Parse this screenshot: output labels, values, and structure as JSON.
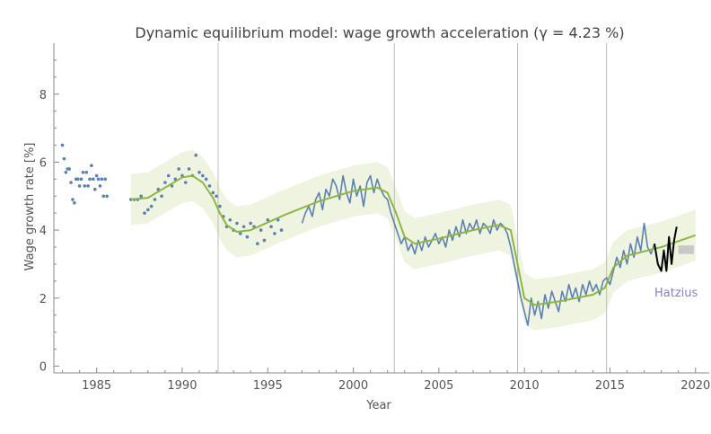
{
  "chart_data": {
    "type": "line",
    "title": "Dynamic equilibrium model: wage growth acceleration (γ = 4.23 %)",
    "xlabel": "Year",
    "ylabel": "Wage growth rate [%]",
    "xlim": [
      1982.5,
      2020.8
    ],
    "ylim": [
      -0.2,
      9.5
    ],
    "x_ticks": [
      1985,
      1990,
      1995,
      2000,
      2005,
      2010,
      2015,
      2020
    ],
    "y_ticks": [
      0,
      2,
      4,
      6,
      8
    ],
    "shock_years": [
      1992.1,
      2002.4,
      2009.6,
      2014.8
    ],
    "annotation": "Hatzius",
    "colors": {
      "data": "#5b80b2",
      "model": "#8fb542",
      "band": "#eef4df",
      "forecast": "#000000",
      "hatzius_box": "#c8c8c8",
      "shock_line": "#bbbbbb",
      "annotation": "#8b7fc0"
    },
    "early_dots": [
      [
        1983.0,
        6.5
      ],
      [
        1983.1,
        6.1
      ],
      [
        1983.2,
        5.7
      ],
      [
        1983.3,
        5.8
      ],
      [
        1983.4,
        5.8
      ],
      [
        1983.5,
        5.4
      ],
      [
        1983.6,
        4.9
      ],
      [
        1983.7,
        4.8
      ],
      [
        1983.8,
        5.5
      ],
      [
        1983.9,
        5.5
      ],
      [
        1984.0,
        5.3
      ],
      [
        1984.1,
        5.5
      ],
      [
        1984.2,
        5.7
      ],
      [
        1984.3,
        5.3
      ],
      [
        1984.4,
        5.7
      ],
      [
        1984.5,
        5.3
      ],
      [
        1984.6,
        5.5
      ],
      [
        1984.7,
        5.9
      ],
      [
        1984.8,
        5.5
      ],
      [
        1984.9,
        5.2
      ],
      [
        1985.0,
        5.6
      ],
      [
        1985.1,
        5.5
      ],
      [
        1985.2,
        5.3
      ],
      [
        1985.3,
        5.5
      ],
      [
        1985.4,
        5.0
      ],
      [
        1985.5,
        5.5
      ],
      [
        1985.6,
        5.0
      ]
    ],
    "series": [
      {
        "name": "Wage growth (data)",
        "segments": [
          [
            [
              1987.0,
              4.9
            ],
            [
              1987.2,
              4.9
            ],
            [
              1987.4,
              4.9
            ],
            [
              1987.6,
              5.0
            ],
            [
              1987.8,
              4.5
            ],
            [
              1988.0,
              4.6
            ],
            [
              1988.2,
              4.7
            ],
            [
              1988.4,
              4.9
            ],
            [
              1988.6,
              5.2
            ],
            [
              1988.8,
              5.0
            ],
            [
              1989.0,
              5.4
            ],
            [
              1989.2,
              5.6
            ],
            [
              1989.4,
              5.3
            ],
            [
              1989.6,
              5.5
            ],
            [
              1989.8,
              5.8
            ],
            [
              1990.0,
              5.6
            ],
            [
              1990.2,
              5.4
            ],
            [
              1990.4,
              5.8
            ],
            [
              1990.6,
              5.6
            ],
            [
              1990.8,
              6.2
            ],
            [
              1991.0,
              5.7
            ],
            [
              1991.2,
              5.6
            ],
            [
              1991.4,
              5.5
            ],
            [
              1991.6,
              5.3
            ],
            [
              1991.8,
              5.1
            ],
            [
              1992.0,
              5.0
            ],
            [
              1992.2,
              4.7
            ],
            [
              1992.4,
              4.4
            ],
            [
              1992.6,
              4.1
            ],
            [
              1992.8,
              4.3
            ],
            [
              1993.0,
              4.0
            ],
            [
              1993.2,
              4.2
            ],
            [
              1993.4,
              3.9
            ],
            [
              1993.6,
              4.1
            ],
            [
              1993.8,
              3.8
            ],
            [
              1994.0,
              4.2
            ],
            [
              1994.2,
              4.1
            ],
            [
              1994.4,
              3.6
            ],
            [
              1994.6,
              4.0
            ],
            [
              1994.8,
              3.7
            ],
            [
              1995.0,
              4.3
            ],
            [
              1995.2,
              4.1
            ],
            [
              1995.4,
              3.9
            ],
            [
              1995.6,
              4.3
            ],
            [
              1995.8,
              4.0
            ]
          ],
          [
            [
              1997.0,
              4.2
            ],
            [
              1997.2,
              4.5
            ],
            [
              1997.4,
              4.7
            ],
            [
              1997.6,
              4.4
            ],
            [
              1997.8,
              4.9
            ],
            [
              1998.0,
              5.1
            ],
            [
              1998.2,
              4.6
            ],
            [
              1998.4,
              5.2
            ],
            [
              1998.6,
              5.0
            ],
            [
              1998.8,
              5.5
            ],
            [
              1999.0,
              5.3
            ],
            [
              1999.2,
              4.9
            ],
            [
              1999.4,
              5.6
            ],
            [
              1999.6,
              5.1
            ],
            [
              1999.8,
              4.8
            ],
            [
              2000.0,
              5.5
            ],
            [
              2000.2,
              5.0
            ],
            [
              2000.4,
              5.3
            ],
            [
              2000.6,
              4.7
            ],
            [
              2000.8,
              5.4
            ],
            [
              2001.0,
              5.6
            ],
            [
              2001.2,
              5.1
            ],
            [
              2001.4,
              5.5
            ],
            [
              2001.6,
              5.2
            ],
            [
              2001.8,
              5.0
            ],
            [
              2002.0,
              4.9
            ],
            [
              2002.2,
              4.5
            ],
            [
              2002.4,
              4.2
            ],
            [
              2002.6,
              3.9
            ],
            [
              2002.8,
              3.6
            ],
            [
              2003.0,
              3.8
            ],
            [
              2003.2,
              3.4
            ],
            [
              2003.4,
              3.6
            ],
            [
              2003.6,
              3.3
            ],
            [
              2003.8,
              3.7
            ],
            [
              2004.0,
              3.4
            ],
            [
              2004.2,
              3.8
            ],
            [
              2004.4,
              3.5
            ],
            [
              2004.6,
              3.7
            ],
            [
              2004.8,
              3.9
            ],
            [
              2005.0,
              3.6
            ],
            [
              2005.2,
              3.8
            ],
            [
              2005.4,
              3.5
            ],
            [
              2005.6,
              4.0
            ],
            [
              2005.8,
              3.7
            ],
            [
              2006.0,
              4.1
            ],
            [
              2006.2,
              3.8
            ],
            [
              2006.4,
              4.3
            ],
            [
              2006.6,
              3.9
            ],
            [
              2006.8,
              4.2
            ],
            [
              2007.0,
              4.0
            ],
            [
              2007.2,
              4.3
            ],
            [
              2007.4,
              3.9
            ],
            [
              2007.6,
              4.2
            ],
            [
              2007.8,
              4.1
            ],
            [
              2008.0,
              3.9
            ],
            [
              2008.2,
              4.3
            ],
            [
              2008.4,
              4.0
            ],
            [
              2008.6,
              4.2
            ],
            [
              2008.8,
              4.1
            ],
            [
              2009.0,
              3.9
            ],
            [
              2009.2,
              3.5
            ],
            [
              2009.4,
              3.0
            ],
            [
              2009.6,
              2.5
            ],
            [
              2009.8,
              2.0
            ],
            [
              2010.0,
              1.6
            ],
            [
              2010.2,
              1.2
            ],
            [
              2010.4,
              2.0
            ],
            [
              2010.6,
              1.5
            ],
            [
              2010.8,
              1.9
            ],
            [
              2011.0,
              1.4
            ],
            [
              2011.2,
              2.1
            ],
            [
              2011.4,
              1.7
            ],
            [
              2011.6,
              2.2
            ],
            [
              2011.8,
              1.9
            ],
            [
              2012.0,
              1.6
            ],
            [
              2012.2,
              2.2
            ],
            [
              2012.4,
              1.9
            ],
            [
              2012.6,
              2.4
            ],
            [
              2012.8,
              2.0
            ],
            [
              2013.0,
              2.3
            ],
            [
              2013.2,
              1.9
            ],
            [
              2013.4,
              2.4
            ],
            [
              2013.6,
              2.1
            ],
            [
              2013.8,
              2.5
            ],
            [
              2014.0,
              2.2
            ],
            [
              2014.2,
              2.4
            ],
            [
              2014.4,
              2.1
            ],
            [
              2014.6,
              2.5
            ],
            [
              2014.8,
              2.6
            ],
            [
              2015.0,
              2.4
            ],
            [
              2015.2,
              2.8
            ],
            [
              2015.4,
              3.2
            ],
            [
              2015.6,
              2.9
            ],
            [
              2015.8,
              3.4
            ],
            [
              2016.0,
              3.0
            ],
            [
              2016.2,
              3.6
            ],
            [
              2016.4,
              3.2
            ],
            [
              2016.6,
              3.8
            ],
            [
              2016.8,
              3.4
            ],
            [
              2017.0,
              4.2
            ],
            [
              2017.2,
              3.5
            ],
            [
              2017.4,
              3.3
            ],
            [
              2017.6,
              3.6
            ]
          ]
        ]
      },
      {
        "name": "Model",
        "points": [
          [
            1987.0,
            4.9
          ],
          [
            1988.0,
            4.95
          ],
          [
            1989.0,
            5.25
          ],
          [
            1990.0,
            5.55
          ],
          [
            1990.6,
            5.6
          ],
          [
            1991.2,
            5.4
          ],
          [
            1991.8,
            4.95
          ],
          [
            1992.2,
            4.5
          ],
          [
            1992.6,
            4.15
          ],
          [
            1993.2,
            3.95
          ],
          [
            1994.0,
            4.0
          ],
          [
            1996.0,
            4.45
          ],
          [
            1998.0,
            4.85
          ],
          [
            2000.0,
            5.15
          ],
          [
            2001.4,
            5.25
          ],
          [
            2002.0,
            5.1
          ],
          [
            2002.5,
            4.5
          ],
          [
            2003.0,
            3.8
          ],
          [
            2003.6,
            3.6
          ],
          [
            2005.0,
            3.75
          ],
          [
            2007.0,
            4.0
          ],
          [
            2008.5,
            4.15
          ],
          [
            2009.2,
            4.0
          ],
          [
            2009.6,
            3.0
          ],
          [
            2010.0,
            2.0
          ],
          [
            2010.6,
            1.8
          ],
          [
            2012.0,
            1.9
          ],
          [
            2014.0,
            2.1
          ],
          [
            2014.7,
            2.3
          ],
          [
            2015.2,
            2.9
          ],
          [
            2016.0,
            3.25
          ],
          [
            2018.0,
            3.5
          ],
          [
            2020.0,
            3.85
          ]
        ]
      },
      {
        "name": "Forecast path",
        "points": [
          [
            2017.6,
            3.6
          ],
          [
            2017.8,
            3.0
          ],
          [
            2018.0,
            2.8
          ],
          [
            2018.15,
            3.4
          ],
          [
            2018.3,
            2.8
          ],
          [
            2018.45,
            3.8
          ],
          [
            2018.6,
            3.0
          ],
          [
            2018.75,
            3.7
          ],
          [
            2018.9,
            4.1
          ]
        ]
      }
    ],
    "hatzius_box": {
      "x": [
        2019.0,
        2019.9
      ],
      "y": [
        3.3,
        3.55
      ]
    },
    "band_halfwidth": 0.75
  }
}
